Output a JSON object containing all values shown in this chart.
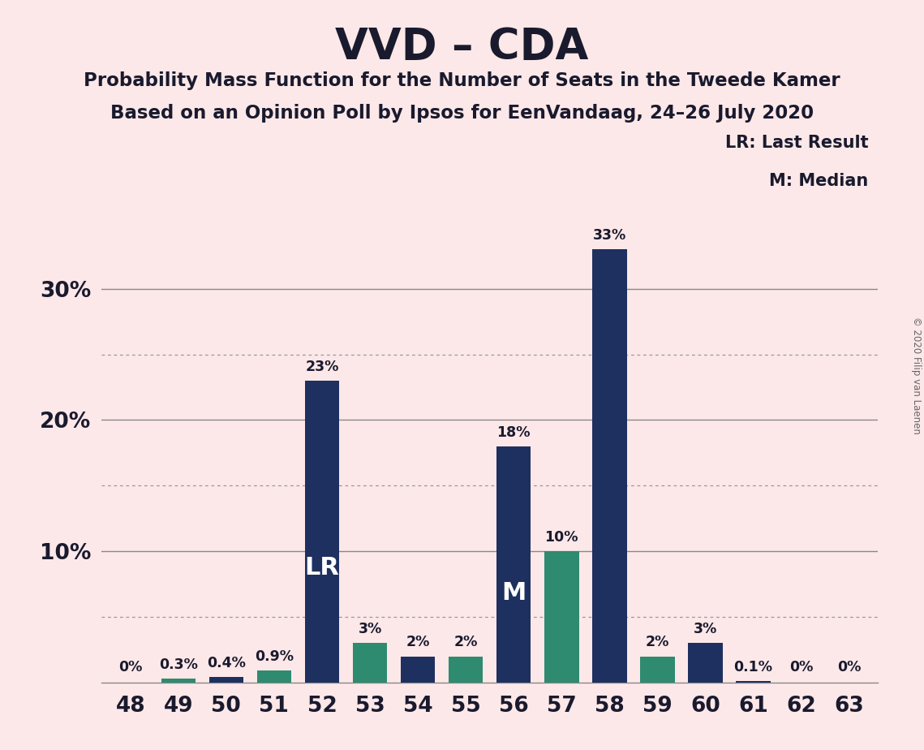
{
  "title": "VVD – CDA",
  "subtitle1": "Probability Mass Function for the Number of Seats in the Tweede Kamer",
  "subtitle2": "Based on an Opinion Poll by Ipsos for EenVandaag, 24–26 July 2020",
  "copyright": "© 2020 Filip van Laenen",
  "seats": [
    48,
    49,
    50,
    51,
    52,
    53,
    54,
    55,
    56,
    57,
    58,
    59,
    60,
    61,
    62,
    63
  ],
  "values": [
    0.0,
    0.3,
    0.4,
    0.9,
    23.0,
    3.0,
    2.0,
    2.0,
    18.0,
    10.0,
    33.0,
    2.0,
    3.0,
    0.1,
    0.0,
    0.0
  ],
  "labels": [
    "0%",
    "0.3%",
    "0.4%",
    "0.9%",
    "23%",
    "3%",
    "2%",
    "2%",
    "18%",
    "10%",
    "33%",
    "2%",
    "3%",
    "0.1%",
    "0%",
    "0%"
  ],
  "colors": [
    "#1e3060",
    "#2e8b70",
    "#1e3060",
    "#2e8b70",
    "#1e3060",
    "#2e8b70",
    "#1e3060",
    "#2e8b70",
    "#1e3060",
    "#2e8b70",
    "#1e3060",
    "#2e8b70",
    "#1e3060",
    "#1e3060",
    "#1e3060",
    "#1e3060"
  ],
  "lr_seat": 52,
  "median_seat": 56,
  "background_color": "#fce8e8",
  "navy": "#1e3060",
  "teal": "#2e8b70",
  "ylim": [
    0,
    36
  ],
  "legend_lr": "LR: Last Result",
  "legend_m": "M: Median"
}
